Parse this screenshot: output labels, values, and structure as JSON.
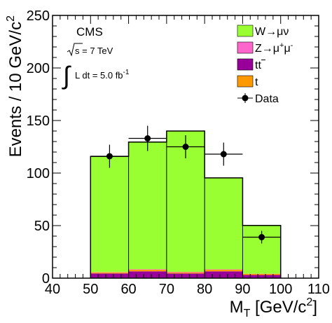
{
  "chart_data": {
    "type": "bar",
    "subtype": "stacked-histogram-with-data-points",
    "xlabel": "M_T [GeV/c²]",
    "ylabel": "Events / 10 GeV/c²",
    "xlim": [
      40,
      110
    ],
    "ylim": [
      0,
      250
    ],
    "x_major_ticks": [
      40,
      50,
      60,
      70,
      80,
      90,
      100,
      110
    ],
    "x_tick_labels": [
      "40",
      "50",
      "60",
      "70",
      "80",
      "90",
      "100",
      "110"
    ],
    "y_major_ticks": [
      0,
      50,
      100,
      150,
      200,
      250
    ],
    "y_tick_labels": [
      "0",
      "50",
      "100",
      "150",
      "200",
      "250"
    ],
    "bins": [
      [
        50,
        60
      ],
      [
        60,
        70
      ],
      [
        70,
        80
      ],
      [
        80,
        90
      ],
      [
        90,
        100
      ]
    ],
    "stack_order_bottom_to_top": [
      "tt",
      "t",
      "Z",
      "W"
    ],
    "series": [
      {
        "key": "W",
        "label_base": "W",
        "label_arrow": "→",
        "label_products": "μν",
        "color": "#99ff33",
        "values": [
          110,
          121,
          134,
          87,
          46
        ]
      },
      {
        "key": "Z",
        "label_base": "Z",
        "label_arrow": "→",
        "label_mu": "μ",
        "label_sup1": "+",
        "label_sup2": "-",
        "color": "#ff66cc",
        "values": [
          0.3,
          0.5,
          0.5,
          0.4,
          0.2
        ]
      },
      {
        "key": "tt",
        "label_base": "tt",
        "color": "#990099",
        "values": [
          4.5,
          6.5,
          4.5,
          6.5,
          3.0
        ]
      },
      {
        "key": "t",
        "label_base": "t",
        "color": "#ff9900",
        "values": [
          1.0,
          1.5,
          1.0,
          1.5,
          1.0
        ]
      }
    ],
    "data": {
      "label": "Data",
      "color": "#000000",
      "x": [
        55,
        65,
        75,
        85,
        95
      ],
      "y": [
        116,
        133,
        125,
        118,
        39
      ],
      "yerr": [
        11,
        12,
        11,
        11,
        6
      ]
    },
    "annotations": {
      "experiment": "CMS",
      "energy_prefix": "s",
      "energy_value": " = 7 TeV",
      "lumi_integral": "∫",
      "lumi_text": "L dt = 5.0 fb",
      "lumi_exp": "-1"
    },
    "legend_placement": "top-right",
    "grid": false
  },
  "axes": {
    "y_title_main": "Events / 10 GeV/c",
    "y_title_sup": "2",
    "x_title_m": "M",
    "x_title_sub": "T",
    "x_title_rest": " [GeV/c",
    "x_title_sup": "2",
    "x_title_end": "]"
  }
}
